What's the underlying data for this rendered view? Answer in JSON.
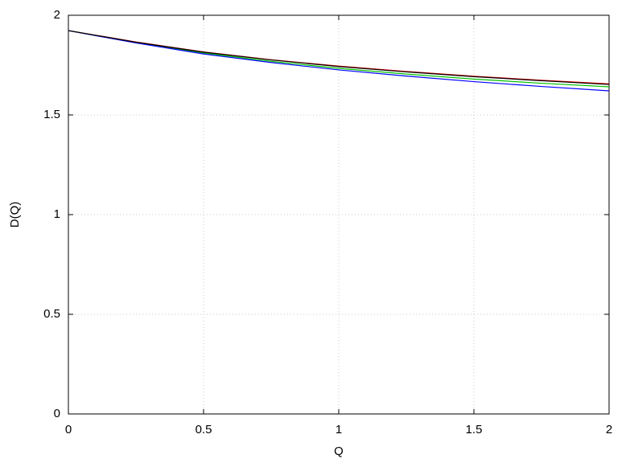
{
  "chart_data": {
    "type": "line",
    "x_label": "Q",
    "y_label": "D(Q)",
    "x": [
      0,
      0.25,
      0.5,
      0.75,
      1,
      1.25,
      1.5,
      1.75,
      2
    ],
    "series": [
      {
        "color": "#ff0000",
        "values": [
          1.923,
          1.866,
          1.816,
          1.777,
          1.745,
          1.718,
          1.694,
          1.674,
          1.656
        ]
      },
      {
        "color": "#00c000",
        "values": [
          1.923,
          1.863,
          1.811,
          1.769,
          1.734,
          1.705,
          1.68,
          1.659,
          1.641
        ]
      },
      {
        "color": "#0000ff",
        "values": [
          1.923,
          1.861,
          1.806,
          1.763,
          1.726,
          1.695,
          1.667,
          1.643,
          1.621
        ]
      },
      {
        "color": "#000000",
        "values": [
          1.923,
          1.865,
          1.815,
          1.776,
          1.743,
          1.716,
          1.692,
          1.672,
          1.653
        ]
      }
    ],
    "xlim": [
      0,
      2
    ],
    "ylim": [
      0,
      2
    ],
    "xticks": [
      0,
      0.5,
      1,
      1.5,
      2
    ],
    "yticks": [
      0,
      0.5,
      1,
      1.5,
      2
    ],
    "grid": true
  }
}
